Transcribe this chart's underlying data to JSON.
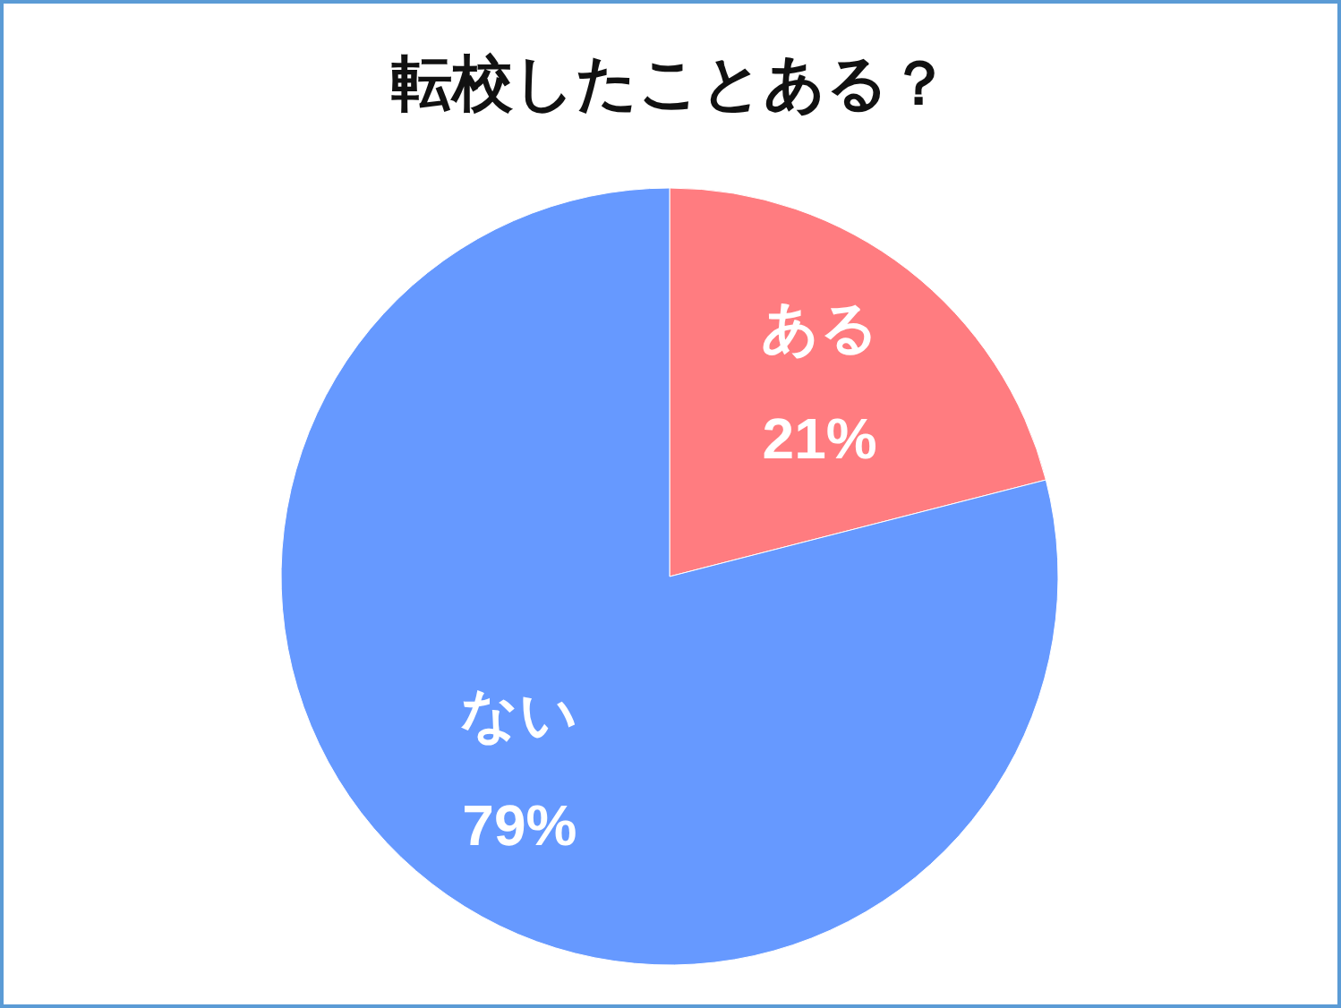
{
  "chart_data": {
    "type": "pie",
    "title": "転校したことある？",
    "categories": [
      "ある",
      "ない"
    ],
    "values": [
      21,
      79
    ],
    "colors": [
      "#ff7c80",
      "#6699ff"
    ],
    "value_labels": [
      "21%",
      "79%"
    ]
  }
}
